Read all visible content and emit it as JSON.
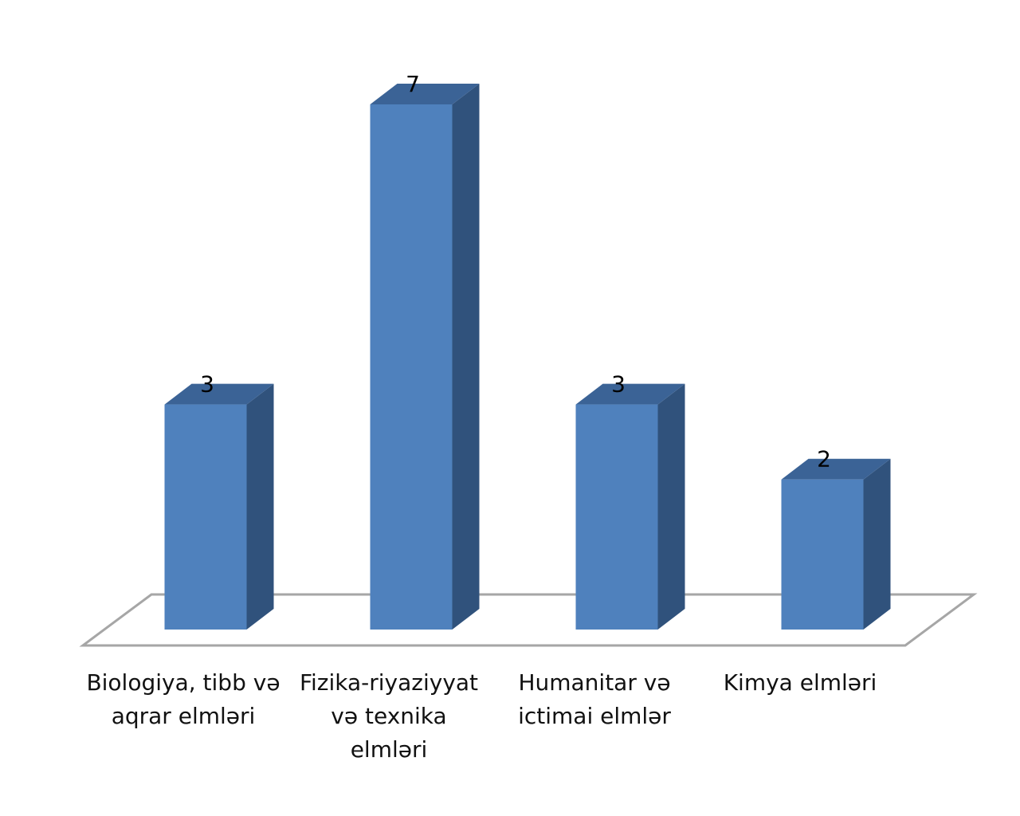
{
  "chart_data": {
    "type": "bar3d",
    "categories": [
      "Biologiya, tibb və aqrar elmləri",
      "Fizika-riyaziyyat və texnika elmləri",
      "Humanitar və ictimai elmlər",
      "Kimya elmləri"
    ],
    "values": [
      3,
      7,
      3,
      2
    ],
    "color": "#4f81bd"
  }
}
